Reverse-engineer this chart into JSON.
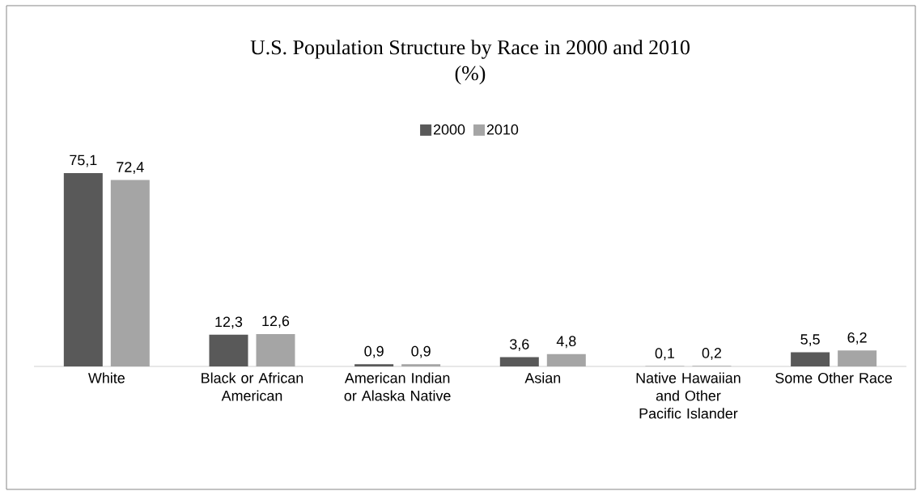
{
  "chart_data": {
    "type": "bar",
    "title": "U.S. Population Structure by Race in 2000 and 2010",
    "subtitle": "(%)",
    "categories": [
      "White",
      "Black or African American",
      "American Indian or Alaska Native",
      "Asian",
      "Native Hawaiian and Other Pacific Islander",
      "Some Other Race"
    ],
    "series": [
      {
        "name": "2000",
        "color": "#595959",
        "values": [
          75.1,
          12.3,
          0.9,
          3.6,
          0.1,
          5.5
        ],
        "value_labels": [
          "75,1",
          "12,3",
          "0,9",
          "3,6",
          "0,1",
          "5,5"
        ]
      },
      {
        "name": "2010",
        "color": "#a5a5a5",
        "values": [
          72.4,
          12.6,
          0.9,
          4.8,
          0.2,
          6.2
        ],
        "value_labels": [
          "72,4",
          "12,6",
          "0,9",
          "4,8",
          "0,2",
          "6,2"
        ]
      }
    ],
    "legend": "top",
    "grid": false
  }
}
